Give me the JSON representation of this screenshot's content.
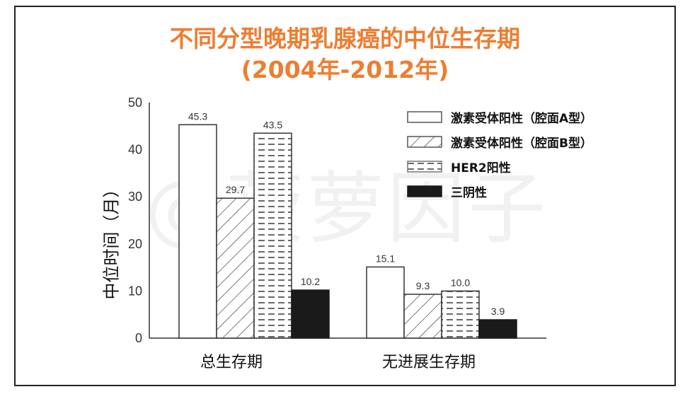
{
  "title": {
    "line1": "不同分型晚期乳腺癌的中位生存期",
    "line2": "(2004年-2012年)",
    "color": "#EE7D31"
  },
  "watermark": "@菠萝因子",
  "chart_data": {
    "type": "bar",
    "title": "不同分型晚期乳腺癌的中位生存期 (2004年-2012年)",
    "xlabel": "",
    "ylabel": "中位时间（月）",
    "ylim": [
      0,
      50
    ],
    "yticks": [
      0,
      10,
      20,
      30,
      40,
      50
    ],
    "categories": [
      "总生存期",
      "无进展生存期"
    ],
    "series": [
      {
        "name": "激素受体阳性（腔面A型）",
        "pattern": "white",
        "values": [
          45.3,
          15.1
        ],
        "labels": [
          "45.3",
          "15.1"
        ]
      },
      {
        "name": "激素受体阳性（腔面B型）",
        "pattern": "diagonal-hatch",
        "values": [
          29.7,
          9.3
        ],
        "labels": [
          "29.7",
          "9.3"
        ]
      },
      {
        "name": "HER2阳性",
        "pattern": "dashed-lines",
        "values": [
          43.5,
          10.0
        ],
        "labels": [
          "43.5",
          "10.0"
        ]
      },
      {
        "name": "三阴性",
        "pattern": "solid-black",
        "values": [
          10.2,
          3.9
        ],
        "labels": [
          "10.2",
          "3.9"
        ]
      }
    ],
    "legend_position": "upper-right",
    "grid": false
  }
}
